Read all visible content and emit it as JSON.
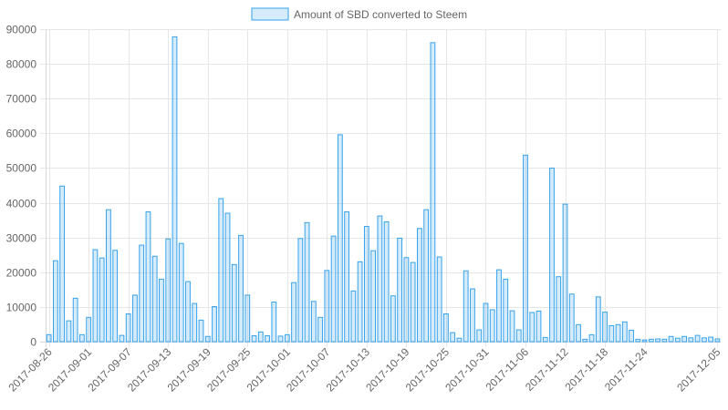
{
  "chart_data": {
    "type": "bar",
    "legend": {
      "label": "Amount of SBD converted to Steem",
      "position": "top"
    },
    "grid": true,
    "ylim": [
      0,
      90000
    ],
    "y_ticks": [
      0,
      10000,
      20000,
      30000,
      40000,
      50000,
      60000,
      70000,
      80000,
      90000
    ],
    "x_tick_labels": [
      "2017-08-26",
      "2017-09-01",
      "2017-09-07",
      "2017-09-13",
      "2017-09-19",
      "2017-09-25",
      "2017-10-01",
      "2017-10-07",
      "2017-10-13",
      "2017-10-19",
      "2017-10-25",
      "2017-10-31",
      "2017-11-06",
      "2017-11-12",
      "2017-11-18",
      "2017-11-24",
      "2017-12-05"
    ],
    "x_tick_every": 6,
    "x_tick_last": true,
    "colors": {
      "bar_fill": "rgba(54,162,235,0.2)",
      "bar_border": "#36a2eb",
      "grid": "#e6e6e6",
      "axis": "#d9d9d9",
      "text": "#666666"
    },
    "start_date": "2017-08-26",
    "values": [
      2000,
      23300,
      44800,
      6000,
      12500,
      2000,
      7000,
      26500,
      24100,
      38000,
      26300,
      1800,
      8000,
      13400,
      27800,
      37400,
      24600,
      18000,
      29600,
      87800,
      28300,
      17300,
      11000,
      6200,
      1500,
      10100,
      41200,
      37000,
      22200,
      30600,
      13400,
      1700,
      2800,
      1700,
      11400,
      1600,
      2000,
      17000,
      29700,
      34300,
      11600,
      7000,
      20500,
      30400,
      59600,
      37400,
      14600,
      23000,
      33200,
      26200,
      36200,
      34500,
      13200,
      29800,
      24200,
      22800,
      32600,
      38000,
      86100,
      24400,
      8000,
      2600,
      1000,
      20400,
      15200,
      3400,
      11000,
      9200,
      20700,
      18000,
      8900,
      3400,
      53700,
      8400,
      8800,
      1200,
      50000,
      18700,
      39600,
      13700,
      4900,
      700,
      2000,
      12900,
      8500,
      4600,
      4900,
      5700,
      3300,
      700,
      500,
      700,
      800,
      700,
      1500,
      1000,
      1500,
      1100,
      1800,
      1100,
      1300,
      800
    ]
  }
}
